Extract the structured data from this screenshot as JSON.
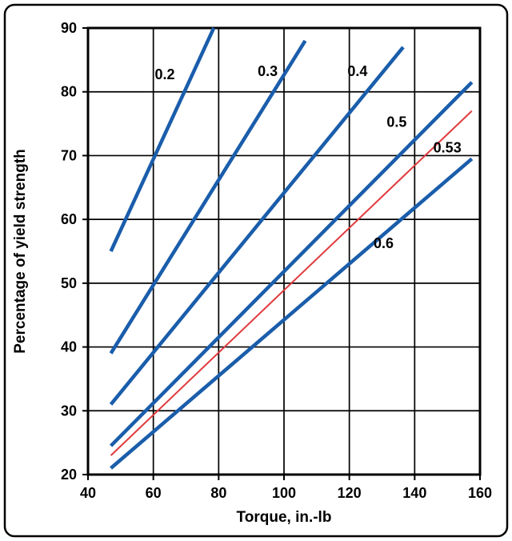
{
  "chart_data": {
    "type": "line",
    "title": "",
    "xlabel": "Torque, in.-lb",
    "ylabel": "Percentage of yield strength",
    "xlim": [
      40,
      160
    ],
    "ylim": [
      20,
      90
    ],
    "xticks": [
      40,
      60,
      80,
      100,
      120,
      140,
      160
    ],
    "yticks": [
      20,
      30,
      40,
      50,
      60,
      70,
      80,
      90
    ],
    "grid": true,
    "legend": "inline-labels",
    "colors": {
      "series_blue": "#1a5dab",
      "series_red": "#e03a3e",
      "axis": "#000000"
    },
    "series": [
      {
        "name": "0.2",
        "color": "#1a5dab",
        "width": 4.5,
        "points": [
          [
            47,
            55
          ],
          [
            78.5,
            90
          ]
        ],
        "label_pos": [
          63.5,
          82
        ]
      },
      {
        "name": "0.3",
        "color": "#1a5dab",
        "width": 4.5,
        "points": [
          [
            47,
            39
          ],
          [
            106.5,
            88
          ]
        ],
        "label_pos": [
          95,
          82.5
        ]
      },
      {
        "name": "0.4",
        "color": "#1a5dab",
        "width": 4.5,
        "points": [
          [
            47,
            31
          ],
          [
            136.5,
            87
          ]
        ],
        "label_pos": [
          122.5,
          82.5
        ]
      },
      {
        "name": "0.5",
        "color": "#1a5dab",
        "width": 4.5,
        "points": [
          [
            47,
            24.5
          ],
          [
            157.5,
            81.5
          ]
        ],
        "label_pos": [
          134.5,
          74.5
        ]
      },
      {
        "name": "0.53",
        "color": "#e03a3e",
        "width": 2,
        "points": [
          [
            47,
            23
          ],
          [
            157.5,
            77
          ]
        ],
        "label_pos": [
          150,
          70.5
        ]
      },
      {
        "name": "0.6",
        "color": "#1a5dab",
        "width": 4.5,
        "points": [
          [
            47,
            21
          ],
          [
            157.5,
            69.5
          ]
        ],
        "label_pos": [
          130.5,
          55.5
        ]
      }
    ]
  }
}
